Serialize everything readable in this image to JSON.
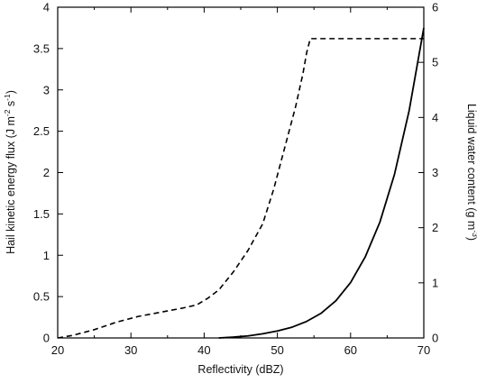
{
  "chart_data": {
    "type": "line",
    "title": "",
    "xlabel": "Reflectivity  (dBZ)",
    "ylabel_left": "Hail kinetic energy flux  (J m-2 s-1)",
    "ylabel_left_parts": [
      "Hail kinetic energy flux  (J m",
      "-2",
      " s",
      "-1",
      ")"
    ],
    "ylabel_right": "Liquid water content  (g m-3)",
    "ylabel_right_parts": [
      "Liquid water content  (g m",
      "-3",
      ")"
    ],
    "xlim": [
      20,
      70
    ],
    "ylim_left": [
      0,
      4
    ],
    "ylim_right": [
      0,
      6
    ],
    "xticks": [
      "20",
      "30",
      "40",
      "50",
      "60",
      "70"
    ],
    "yticks_left": [
      "0",
      "0.5",
      "1",
      "1.5",
      "2",
      "2.5",
      "3",
      "3.5",
      "4"
    ],
    "yticks_right": [
      "0",
      "1",
      "2",
      "3",
      "4",
      "5",
      "6"
    ],
    "grid": false,
    "series": [
      {
        "style": "dashed",
        "axis": "left",
        "x": [
          20,
          22,
          25,
          28,
          31,
          34,
          37,
          39,
          40.5,
          42,
          44,
          46,
          48,
          49.5,
          51,
          52.5,
          53.5,
          54,
          54.5,
          70
        ],
        "y": [
          0.0,
          0.03,
          0.1,
          0.19,
          0.26,
          0.31,
          0.36,
          0.4,
          0.48,
          0.58,
          0.8,
          1.06,
          1.38,
          1.8,
          2.3,
          2.8,
          3.2,
          3.45,
          3.62,
          3.62
        ]
      },
      {
        "style": "solid",
        "axis": "left",
        "x": [
          42,
          44,
          46,
          48,
          50,
          52,
          54,
          56,
          58,
          60,
          62,
          64,
          66,
          68,
          70
        ],
        "y": [
          0.0,
          0.01,
          0.025,
          0.05,
          0.085,
          0.13,
          0.2,
          0.3,
          0.45,
          0.67,
          0.98,
          1.4,
          1.98,
          2.75,
          3.75
        ]
      }
    ]
  }
}
